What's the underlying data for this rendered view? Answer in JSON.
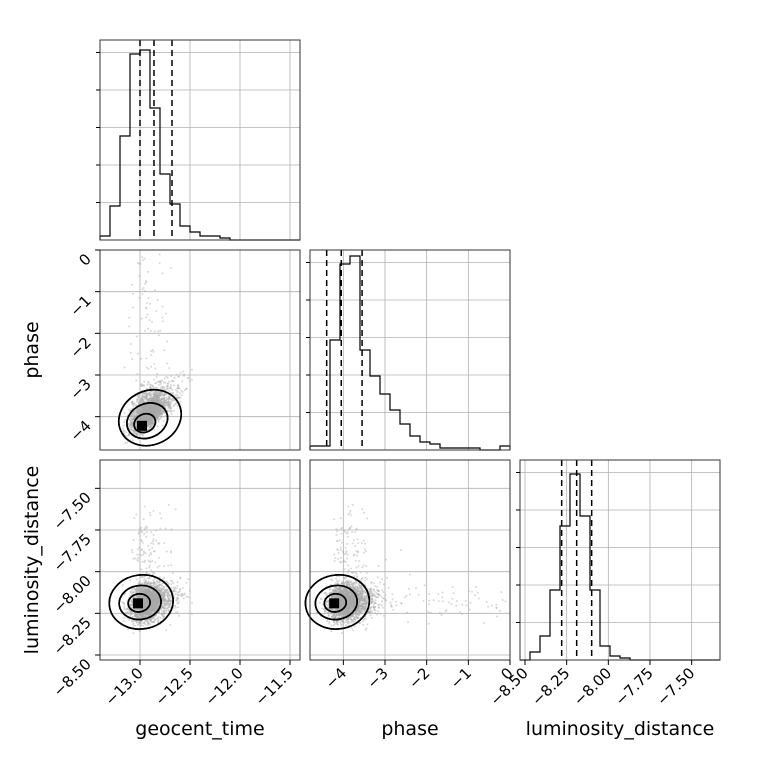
{
  "chart_data": {
    "type": "corner",
    "parameters": [
      "geocent_time",
      "phase",
      "luminosity_distance"
    ],
    "ranges": {
      "geocent_time": [
        -13.4,
        -11.4
      ],
      "phase": [
        -4.8,
        0
      ],
      "luminosity_distance": [
        -8.53,
        -7.33
      ]
    },
    "ticks": {
      "geocent_time": {
        "values": [
          -13.0,
          -12.5,
          -12.0,
          -11.5
        ],
        "labels": [
          "−13.0",
          "−12.5",
          "−12.0",
          "−11.5"
        ]
      },
      "phase": {
        "values": [
          -4,
          -3,
          -2,
          -1,
          0
        ],
        "labels": [
          "−4",
          "−3",
          "−2",
          "−1",
          "0"
        ]
      },
      "luminosity_distance": {
        "values": [
          -8.5,
          -8.25,
          -8.0,
          -7.75,
          -7.5
        ],
        "labels": [
          "−8.50",
          "−8.25",
          "−8.00",
          "−7.75",
          "−7.50"
        ]
      }
    },
    "quantiles": {
      "geocent_time": [
        -13.0,
        -12.86,
        -12.68
      ],
      "phase": [
        -4.4,
        -4.05,
        -3.55
      ],
      "luminosity_distance": [
        -8.28,
        -8.19,
        -8.1
      ]
    },
    "histograms": {
      "geocent_time": [
        0.02,
        0.17,
        0.52,
        0.93,
        0.95,
        0.66,
        0.33,
        0.18,
        0.07,
        0.04,
        0.02,
        0.02,
        0.01,
        0.0,
        0.0,
        0.0,
        0.0,
        0.0,
        0.0,
        0.0
      ],
      "phase": [
        0.02,
        0.02,
        0.55,
        0.93,
        0.97,
        0.5,
        0.37,
        0.28,
        0.2,
        0.13,
        0.07,
        0.04,
        0.03,
        0.01,
        0.01,
        0.01,
        0.01,
        0.0,
        0.0,
        0.02
      ],
      "luminosity_distance": [
        0.0,
        0.04,
        0.12,
        0.35,
        0.67,
        0.93,
        0.72,
        0.35,
        0.07,
        0.02,
        0.01,
        0.0,
        0.0,
        0.0,
        0.0,
        0.0,
        0.0,
        0.0,
        0.0,
        0.0
      ]
    },
    "scatter_centers": {
      "phase_vs_geocent_time": [
        -12.98,
        -4.22
      ],
      "luminosity_distance_vs_geocent_time": [
        -13.02,
        -8.19
      ],
      "luminosity_distance_vs_phase": [
        -4.22,
        -8.19
      ]
    },
    "grid": true,
    "colors": {
      "line": "#000000",
      "grid": "#b0b0b0",
      "points": "#a8a8a8"
    }
  }
}
